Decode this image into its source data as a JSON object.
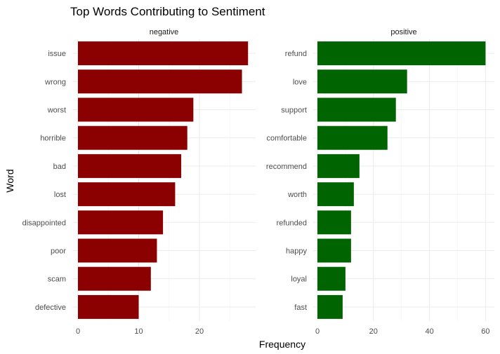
{
  "chart_data": {
    "type": "bar",
    "orientation": "horizontal",
    "title": "Top Words Contributing to Sentiment",
    "xlabel": "Frequency",
    "ylabel": "Word",
    "grid": true,
    "legend": "none",
    "facets": [
      {
        "name": "negative",
        "color": "#8B0000",
        "xlim": [
          0,
          29
        ],
        "xticks": [
          0,
          10,
          20
        ],
        "categories": [
          "issue",
          "wrong",
          "worst",
          "horrible",
          "bad",
          "lost",
          "disappointed",
          "poor",
          "scam",
          "defective"
        ],
        "values": [
          28,
          27,
          19,
          18,
          17,
          16,
          14,
          13,
          12,
          10
        ]
      },
      {
        "name": "positive",
        "color": "#006400",
        "xlim": [
          0,
          60.5
        ],
        "xticks": [
          0,
          20,
          40,
          60
        ],
        "categories": [
          "refund",
          "love",
          "support",
          "comfortable",
          "recommend",
          "worth",
          "refunded",
          "happy",
          "loyal",
          "fast"
        ],
        "values": [
          60,
          32,
          28,
          25,
          15,
          13,
          12,
          12,
          10,
          9
        ]
      }
    ]
  }
}
